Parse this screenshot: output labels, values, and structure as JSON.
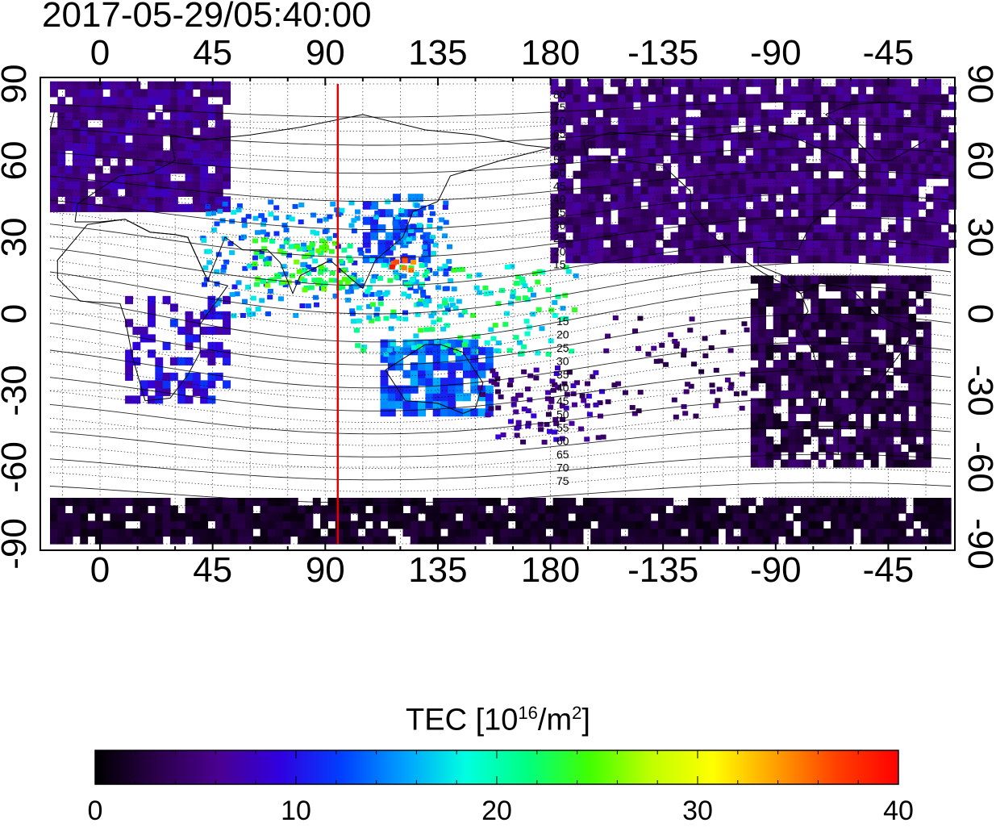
{
  "title": "2017-05-29/05:40:00",
  "map": {
    "lon_ticks_top": [
      "0",
      "45",
      "90",
      "135",
      "180",
      "-135",
      "-90",
      "-45"
    ],
    "lon_ticks_bottom": [
      "0",
      "45",
      "90",
      "135",
      "180",
      "-135",
      "-90",
      "-45"
    ],
    "lat_ticks_left": [
      "90",
      "60",
      "30",
      "0",
      "-30",
      "-60",
      "-90"
    ],
    "lat_ticks_right": [
      "90",
      "60",
      "30",
      "0",
      "-30",
      "-60",
      "-90"
    ],
    "lon_range": [
      -20,
      340
    ],
    "lat_range": [
      -90,
      90
    ],
    "grid": "dotted",
    "subsolar_meridian_lon": 95,
    "subsolar_meridian_color": "#e00000",
    "contour_labels_north": [
      "80",
      "75",
      "70",
      "65",
      "60",
      "55",
      "50",
      "45",
      "40",
      "35",
      "30",
      "25",
      "20",
      "15"
    ],
    "contour_labels_south": [
      "15",
      "20",
      "25",
      "30",
      "35",
      "40",
      "45",
      "50",
      "55",
      "60",
      "65",
      "70",
      "75"
    ]
  },
  "colorbar": {
    "label_main": "TEC  [10",
    "label_exp": "16",
    "label_unit": "/m",
    "label_exp2": "2",
    "label_end": "]",
    "ticks": [
      "0",
      "10",
      "20",
      "30",
      "40"
    ],
    "range": [
      0,
      40
    ],
    "colors": [
      "#000000",
      "#2a004a",
      "#4a0090",
      "#3000e0",
      "#0040ff",
      "#00a0ff",
      "#00ffe0",
      "#00ff80",
      "#40ff00",
      "#c0ff00",
      "#ffff00",
      "#ffa000",
      "#ff4000",
      "#ff0000"
    ]
  }
}
